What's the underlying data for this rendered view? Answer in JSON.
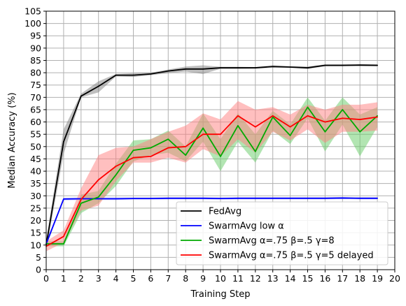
{
  "chart_data": {
    "type": "line",
    "xlabel": "Training Step",
    "ylabel": "Median Accuracy (%)",
    "xlim": [
      0,
      20
    ],
    "ylim": [
      0,
      105
    ],
    "xticks": [
      "0",
      "1",
      "2",
      "3",
      "4",
      "5",
      "6",
      "7",
      "8",
      "9",
      "10",
      "11",
      "12",
      "13",
      "14",
      "15",
      "16",
      "17",
      "18",
      "19",
      "20"
    ],
    "yticks": [
      "0",
      "5",
      "10",
      "15",
      "20",
      "25",
      "30",
      "35",
      "40",
      "45",
      "50",
      "55",
      "60",
      "65",
      "70",
      "75",
      "80",
      "85",
      "90",
      "95",
      "100",
      "105"
    ],
    "grid": true,
    "legend_position": "lower-right",
    "x": [
      0,
      1,
      2,
      3,
      4,
      5,
      6,
      7,
      8,
      9,
      10,
      11,
      12,
      13,
      14,
      15,
      16,
      17,
      18,
      19
    ],
    "series": [
      {
        "name": "FedAvg",
        "color": "#000000",
        "band_color": "#808080",
        "values": [
          10,
          52,
          70.5,
          74.5,
          79,
          79,
          79.5,
          80.7,
          81.5,
          81.5,
          82,
          82,
          82,
          82.5,
          82.3,
          82,
          83,
          83,
          83.1,
          83
        ],
        "lower": [
          8,
          47,
          70,
          72,
          78.5,
          78.3,
          79,
          79.8,
          80.5,
          79.5,
          81.6,
          81.6,
          81.7,
          82,
          82,
          81.5,
          82.6,
          82.6,
          82.7,
          82.6
        ],
        "upper": [
          12,
          57,
          71.5,
          76.5,
          79.5,
          79.8,
          80,
          81.3,
          82.5,
          83,
          82.4,
          82.4,
          82.3,
          83,
          82.6,
          82.5,
          83.4,
          83.4,
          83.5,
          83.4
        ]
      },
      {
        "name": "SwarmAvg low α",
        "color": "#0000ff",
        "band_color": "#8080ff",
        "values": [
          10.5,
          28.7,
          28.8,
          28.8,
          28.8,
          28.9,
          28.9,
          29,
          29,
          29,
          28.9,
          29,
          29,
          29,
          29,
          29,
          29,
          29.1,
          29,
          29
        ],
        "lower": [
          9.5,
          28.2,
          28.3,
          28.3,
          28.3,
          28.5,
          28.5,
          28.6,
          28.6,
          28.6,
          28.5,
          28.6,
          28.6,
          28.6,
          28.6,
          28.6,
          28.6,
          28.7,
          28.6,
          28.6
        ],
        "upper": [
          11.5,
          29.2,
          29.3,
          29.3,
          29.3,
          29.3,
          29.3,
          29.4,
          29.4,
          29.4,
          29.3,
          29.4,
          29.4,
          29.4,
          29.4,
          29.4,
          29.4,
          29.5,
          29.4,
          29.4
        ]
      },
      {
        "name": "SwarmAvg α=.75 β=.5 γ=8",
        "color": "#00aa00",
        "band_color": "#66cc66",
        "values": [
          10.5,
          10.5,
          27,
          29.5,
          38.5,
          48.5,
          49.5,
          53,
          46.5,
          57.5,
          46,
          58.5,
          48,
          62,
          54.5,
          66,
          56,
          65,
          56,
          62.5
        ],
        "lower": [
          9.5,
          9.5,
          23,
          27,
          34,
          44,
          46.5,
          47.5,
          44,
          52,
          40,
          52,
          43.5,
          56.5,
          51,
          61.5,
          48,
          59,
          46,
          58
        ],
        "upper": [
          11.5,
          11.5,
          30.5,
          32,
          43,
          52.5,
          53,
          56.5,
          50,
          63.5,
          53,
          63.5,
          55,
          64.5,
          59,
          70,
          60.5,
          70,
          63,
          66
        ]
      },
      {
        "name": "SwarmAvg α=.75 β=.5 γ=5 delayed",
        "color": "#ff0000",
        "band_color": "#ff8080",
        "values": [
          9.5,
          13.5,
          28.5,
          36.5,
          42,
          45.5,
          46,
          49.5,
          50,
          55,
          55,
          62.5,
          58,
          62.5,
          58,
          62.5,
          60,
          61.5,
          61,
          62
        ],
        "lower": [
          7.5,
          11,
          24,
          26,
          36,
          43.5,
          43.5,
          45.5,
          43.5,
          49,
          46,
          53,
          47.5,
          56,
          52.5,
          57,
          51.5,
          56,
          56,
          56.5
        ],
        "upper": [
          11.5,
          16,
          33,
          46.5,
          49.5,
          50,
          53,
          56,
          58.5,
          63.5,
          61,
          68.5,
          65,
          66,
          63,
          67,
          65,
          67,
          67,
          68
        ]
      }
    ]
  }
}
